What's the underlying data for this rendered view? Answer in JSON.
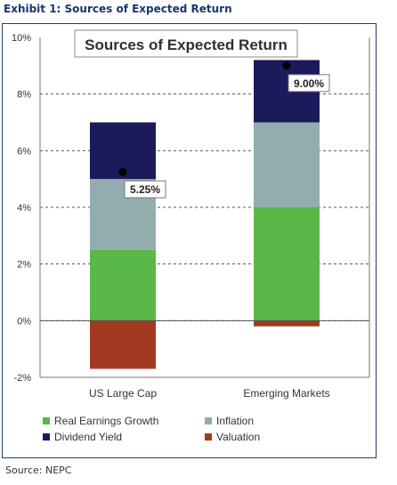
{
  "exhibit_title": "Exhibit 1: Sources of Expected Return",
  "source_note": "Source: NEPC",
  "colors": {
    "real_earnings_growth": "#5ab848",
    "inflation": "#93adaf",
    "dividend_yield": "#1b1a5a",
    "valuation": "#a13a21",
    "frame": "#1e3f78"
  },
  "chart_data": {
    "type": "bar",
    "stacked": true,
    "title": "Sources of Expected Return",
    "categories": [
      "US Large Cap",
      "Emerging Markets"
    ],
    "series": [
      {
        "name": "Real Earnings Growth",
        "values": [
          2.5,
          4.0
        ],
        "color_key": "real_earnings_growth"
      },
      {
        "name": "Inflation",
        "values": [
          2.5,
          3.0
        ],
        "color_key": "inflation"
      },
      {
        "name": "Dividend Yield",
        "values": [
          2.0,
          2.2
        ],
        "color_key": "dividend_yield"
      },
      {
        "name": "Valuation",
        "values": [
          -1.7,
          -0.2
        ],
        "color_key": "valuation"
      }
    ],
    "totals": [
      5.25,
      9.0
    ],
    "total_labels": [
      "5.25%",
      "9.00%"
    ],
    "yticks": [
      -2,
      0,
      2,
      4,
      6,
      8,
      10
    ],
    "ytick_labels": [
      "-2%",
      "0%",
      "2%",
      "4%",
      "6%",
      "8%",
      "10%"
    ],
    "ylim": [
      -2,
      10
    ],
    "grid": "dashed horizontal",
    "legend_position": "bottom",
    "xlabel": "",
    "ylabel": ""
  }
}
